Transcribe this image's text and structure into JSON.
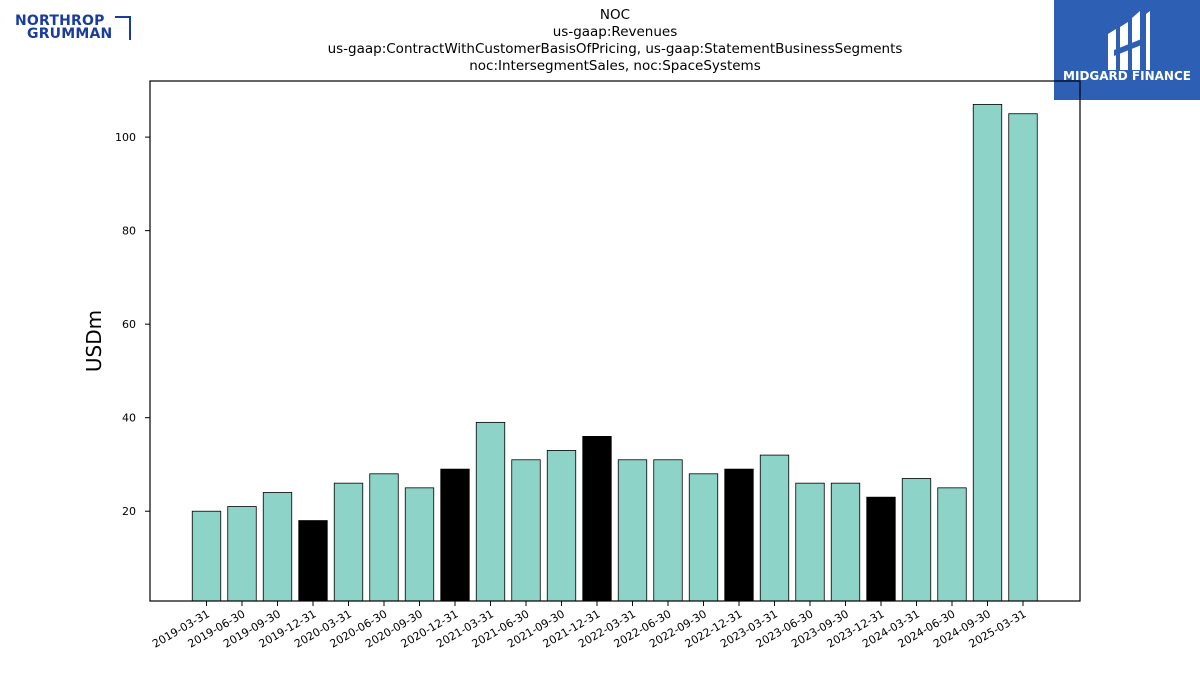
{
  "logos": {
    "left": {
      "line1": "NORTHROP",
      "line2": "GRUMMAN",
      "icon": "northrop-grumman-logo"
    },
    "right": {
      "text": "MIDGARD FINANCE",
      "icon": "midgard-finance-logo",
      "background": "#2d5fb4"
    }
  },
  "chart_data": {
    "type": "bar",
    "title_lines": [
      "NOC",
      "us-gaap:Revenues",
      "us-gaap:ContractWithCustomerBasisOfPricing, us-gaap:StatementBusinessSegments",
      "noc:IntersegmentSales, noc:SpaceSystems"
    ],
    "xlabel": "",
    "ylabel": "USDm",
    "ylim": [
      0.8,
      112
    ],
    "yticks": [
      20,
      40,
      60,
      80,
      100
    ],
    "grid": false,
    "legend": "none",
    "colors": {
      "default": "#8dd3c7",
      "q4": "#000000",
      "edge": "#000000"
    },
    "categories": [
      "2019-03-31",
      "2019-06-30",
      "2019-09-30",
      "2019-12-31",
      "2020-03-31",
      "2020-06-30",
      "2020-09-30",
      "2020-12-31",
      "2021-03-31",
      "2021-06-30",
      "2021-09-30",
      "2021-12-31",
      "2022-03-31",
      "2022-06-30",
      "2022-09-30",
      "2022-12-31",
      "2023-03-31",
      "2023-06-30",
      "2023-09-30",
      "2023-12-31",
      "2024-03-31",
      "2024-06-30",
      "2024-09-30",
      "2025-03-31"
    ],
    "values": [
      20,
      21,
      24,
      18,
      26,
      28,
      25,
      29,
      39,
      31,
      33,
      36,
      31,
      31,
      28,
      29,
      32,
      26,
      26,
      23,
      27,
      25,
      107,
      105
    ],
    "highlight": [
      false,
      false,
      false,
      true,
      false,
      false,
      false,
      true,
      false,
      false,
      false,
      true,
      false,
      false,
      false,
      true,
      false,
      false,
      false,
      true,
      false,
      false,
      false,
      false
    ]
  }
}
